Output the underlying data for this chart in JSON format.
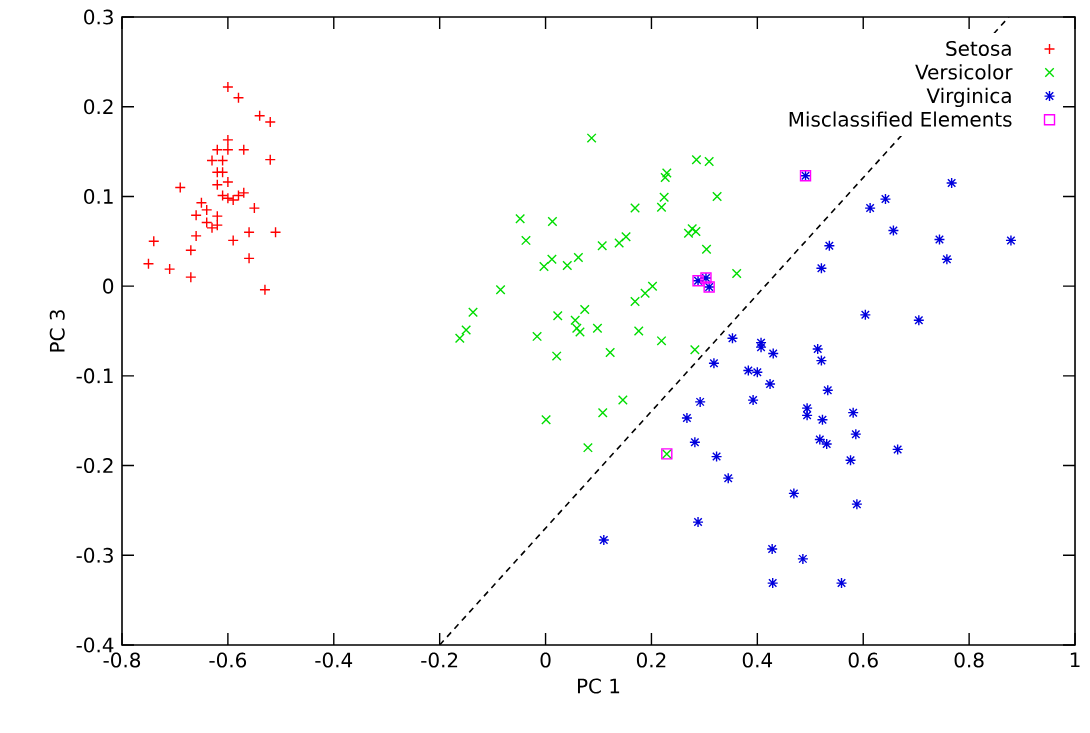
{
  "chart_data": {
    "type": "scatter",
    "xlabel": "PC 1",
    "ylabel": "PC 3",
    "xlim": [
      -0.8,
      1
    ],
    "ylim": [
      -0.4,
      0.3
    ],
    "xticks": [
      -0.8,
      -0.6,
      -0.4,
      -0.2,
      0,
      0.2,
      0.4,
      0.6,
      0.8,
      1
    ],
    "yticks": [
      -0.4,
      -0.3,
      -0.2,
      -0.1,
      0,
      0.1,
      0.2,
      0.3
    ],
    "grid": false,
    "legend": "top right",
    "series": [
      {
        "name": "Setosa",
        "color": "#ff0000",
        "marker": "plus",
        "x": [
          -0.6,
          -0.58,
          -0.54,
          -0.52,
          -0.52,
          -0.57,
          -0.6,
          -0.6,
          -0.69,
          -0.58,
          -0.57,
          -0.55,
          -0.51,
          -0.56,
          -0.59,
          -0.74,
          -0.75,
          -0.71,
          -0.67,
          -0.67,
          -0.56,
          -0.53,
          -0.66,
          -0.66,
          -0.65,
          -0.64,
          -0.64,
          -0.63,
          -0.62,
          -0.62,
          -0.61,
          -0.6,
          -0.59,
          -0.62,
          -0.63,
          -0.61,
          -0.62,
          -0.62,
          -0.61,
          -0.6
        ],
        "values": [
          0.222,
          0.21,
          0.19,
          0.183,
          0.141,
          0.152,
          0.163,
          0.152,
          0.11,
          0.101,
          0.104,
          0.087,
          0.06,
          0.06,
          0.051,
          0.05,
          0.025,
          0.019,
          0.04,
          0.01,
          0.031,
          -0.004,
          0.056,
          0.079,
          0.093,
          0.085,
          0.071,
          0.065,
          0.068,
          0.078,
          0.101,
          0.098,
          0.096,
          0.152,
          0.14,
          0.14,
          0.113,
          0.127,
          0.127,
          0.116
        ]
      },
      {
        "name": "Versicolor",
        "color": "#00dd00",
        "marker": "cross",
        "x": [
          0.087,
          0.285,
          0.309,
          0.229,
          0.226,
          0.224,
          0.219,
          0.169,
          0.324,
          -0.048,
          0.013,
          -0.037,
          0.107,
          0.139,
          0.152,
          0.277,
          0.27,
          0.284,
          0.304,
          0.361,
          -0.003,
          0.012,
          0.041,
          0.062,
          -0.085,
          -0.137,
          -0.15,
          -0.162,
          0.023,
          0.074,
          0.056,
          0.059,
          0.065,
          0.098,
          -0.016,
          0.021,
          0.122,
          0.176,
          0.219,
          0.169,
          0.188,
          0.202,
          0.282,
          0.146,
          0.108,
          0.001,
          0.08,
          0.229
        ],
        "values": [
          0.165,
          0.141,
          0.139,
          0.126,
          0.121,
          0.099,
          0.088,
          0.087,
          0.1,
          0.075,
          0.072,
          0.051,
          0.045,
          0.048,
          0.055,
          0.064,
          0.059,
          0.061,
          0.041,
          0.014,
          0.022,
          0.03,
          0.023,
          0.032,
          -0.004,
          -0.029,
          -0.049,
          -0.058,
          -0.033,
          -0.026,
          -0.038,
          -0.047,
          -0.051,
          -0.047,
          -0.056,
          -0.078,
          -0.074,
          -0.05,
          -0.061,
          -0.017,
          -0.008,
          0.0,
          -0.071,
          -0.127,
          -0.141,
          -0.149,
          -0.18,
          -0.187
        ]
      },
      {
        "name": "Virginica",
        "color": "#0000dd",
        "x": [
          0.767,
          0.642,
          0.613,
          0.657,
          0.744,
          0.879,
          0.758,
          0.536,
          0.521,
          0.604,
          0.705,
          0.353,
          0.407,
          0.407,
          0.43,
          0.514,
          0.521,
          0.318,
          0.383,
          0.4,
          0.424,
          0.533,
          0.392,
          0.292,
          0.494,
          0.494,
          0.523,
          0.581,
          0.267,
          0.586,
          0.518,
          0.531,
          0.282,
          0.323,
          0.665,
          0.576,
          0.345,
          0.469,
          0.588,
          0.288,
          0.11,
          0.428,
          0.486,
          0.429,
          0.559,
          0.288,
          0.303,
          0.309,
          0.491
        ],
        "values": [
          0.115,
          0.097,
          0.087,
          0.062,
          0.052,
          0.051,
          0.03,
          0.045,
          0.02,
          -0.032,
          -0.038,
          -0.058,
          -0.063,
          -0.068,
          -0.075,
          -0.07,
          -0.083,
          -0.086,
          -0.094,
          -0.096,
          -0.109,
          -0.116,
          -0.127,
          -0.129,
          -0.136,
          -0.144,
          -0.149,
          -0.141,
          -0.147,
          -0.165,
          -0.171,
          -0.176,
          -0.174,
          -0.19,
          -0.182,
          -0.194,
          -0.214,
          -0.231,
          -0.243,
          -0.263,
          -0.283,
          -0.293,
          -0.304,
          -0.331,
          -0.331,
          0.006,
          0.009,
          -0.001,
          0.123
        ]
      },
      {
        "name": "Misclassified Elements",
        "color": "#ff00ff",
        "marker": "square",
        "x": [
          0.229,
          0.288,
          0.303,
          0.309,
          0.491
        ],
        "values": [
          -0.187,
          0.006,
          0.009,
          -0.001,
          0.123
        ]
      },
      {
        "type": "line",
        "color": "#000000",
        "marker": "none",
        "line_style": "dashed",
        "x": [
          -0.2,
          0.875
        ],
        "values": [
          -0.4,
          0.3
        ]
      }
    ]
  }
}
